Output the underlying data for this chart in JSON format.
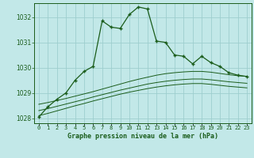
{
  "title": "Graphe pression niveau de la mer (hPa)",
  "background_color": "#c2e8e8",
  "grid_color": "#9ecece",
  "line_color": "#1a5c1a",
  "x_values": [
    0,
    1,
    2,
    3,
    4,
    5,
    6,
    7,
    8,
    9,
    10,
    11,
    12,
    13,
    14,
    15,
    16,
    17,
    18,
    19,
    20,
    21,
    22,
    23
  ],
  "main_line": [
    1028.05,
    1028.45,
    1028.75,
    1029.0,
    1029.5,
    1029.85,
    1030.05,
    1031.85,
    1031.6,
    1031.55,
    1032.1,
    1032.4,
    1032.32,
    1031.05,
    1031.0,
    1030.5,
    1030.45,
    1030.15,
    1030.45,
    1030.2,
    1030.05,
    1029.8,
    1029.7,
    1029.65
  ],
  "smooth_line1": [
    1028.55,
    1028.62,
    1028.7,
    1028.78,
    1028.87,
    1028.96,
    1029.05,
    1029.15,
    1029.25,
    1029.35,
    1029.45,
    1029.54,
    1029.62,
    1029.7,
    1029.76,
    1029.8,
    1029.83,
    1029.85,
    1029.85,
    1029.82,
    1029.77,
    1029.72,
    1029.68,
    1029.65
  ],
  "smooth_line2": [
    1028.3,
    1028.38,
    1028.47,
    1028.56,
    1028.65,
    1028.74,
    1028.84,
    1028.93,
    1029.02,
    1029.11,
    1029.19,
    1029.27,
    1029.35,
    1029.41,
    1029.46,
    1029.5,
    1029.53,
    1029.55,
    1029.55,
    1029.52,
    1029.48,
    1029.44,
    1029.41,
    1029.38
  ],
  "smooth_line3": [
    1028.1,
    1028.19,
    1028.29,
    1028.39,
    1028.49,
    1028.58,
    1028.68,
    1028.77,
    1028.86,
    1028.95,
    1029.03,
    1029.1,
    1029.17,
    1029.23,
    1029.28,
    1029.32,
    1029.35,
    1029.37,
    1029.37,
    1029.34,
    1029.3,
    1029.26,
    1029.23,
    1029.2
  ],
  "ylim": [
    1027.8,
    1032.55
  ],
  "yticks": [
    1028,
    1029,
    1030,
    1031,
    1032
  ],
  "xlim": [
    -0.5,
    23.5
  ],
  "xtick_labels": [
    "0",
    "1",
    "2",
    "3",
    "4",
    "5",
    "6",
    "7",
    "8",
    "9",
    "10",
    "11",
    "12",
    "13",
    "14",
    "15",
    "16",
    "17",
    "18",
    "19",
    "20",
    "21",
    "22",
    "23"
  ]
}
